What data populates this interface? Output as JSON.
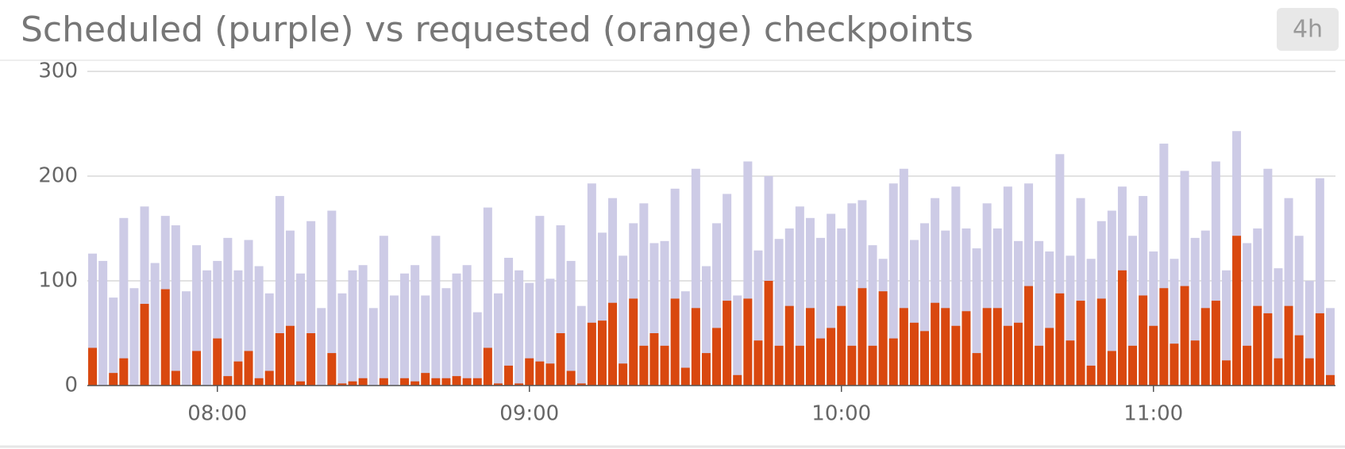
{
  "time_range_button": "4h",
  "chart_data": {
    "type": "bar",
    "title": "Scheduled (purple) vs requested (orange) checkpoints",
    "categories": [
      null,
      null,
      null,
      null,
      null,
      null,
      null,
      null,
      null,
      null,
      null,
      null,
      "08:00",
      null,
      null,
      null,
      null,
      null,
      null,
      null,
      null,
      null,
      null,
      null,
      null,
      null,
      null,
      null,
      null,
      null,
      null,
      null,
      null,
      null,
      null,
      null,
      null,
      null,
      null,
      null,
      null,
      null,
      "09:00",
      null,
      null,
      null,
      null,
      null,
      null,
      null,
      null,
      null,
      null,
      null,
      null,
      null,
      null,
      null,
      null,
      null,
      null,
      null,
      null,
      null,
      null,
      null,
      null,
      null,
      null,
      null,
      null,
      null,
      "10:00",
      null,
      null,
      null,
      null,
      null,
      null,
      null,
      null,
      null,
      null,
      null,
      null,
      null,
      null,
      null,
      null,
      null,
      null,
      null,
      null,
      null,
      null,
      null,
      null,
      null,
      null,
      null,
      null,
      null,
      "11:00",
      null,
      null,
      null,
      null,
      null,
      null,
      null,
      null,
      null,
      null,
      null,
      null,
      null,
      null,
      null,
      null,
      null
    ],
    "series": [
      {
        "color": "#cdcbe6",
        "values": [
          126,
          119,
          84,
          160,
          93,
          171,
          117,
          162,
          153,
          90,
          134,
          110,
          119,
          141,
          110,
          139,
          114,
          88,
          181,
          148,
          107,
          157,
          74,
          167,
          88,
          110,
          115,
          74,
          143,
          86,
          107,
          115,
          86,
          143,
          93,
          107,
          115,
          70,
          170,
          88,
          122,
          110,
          98,
          162,
          102,
          153,
          119,
          76,
          193,
          146,
          179,
          124,
          155,
          174,
          136,
          138,
          188,
          90,
          207,
          114,
          155,
          183,
          86,
          214,
          129,
          200,
          140,
          150,
          171,
          160,
          141,
          164,
          150,
          174,
          177,
          134,
          121,
          193,
          207,
          139,
          155,
          179,
          148,
          190,
          150,
          131,
          174,
          150,
          190,
          138,
          193,
          138,
          128,
          221,
          124,
          179,
          121,
          157,
          167,
          190,
          143,
          181,
          128,
          231,
          121,
          205,
          141,
          148,
          214,
          110,
          243,
          136,
          150,
          207,
          112,
          179,
          143,
          100,
          198,
          74
        ]
      },
      {
        "color": "#d9480f",
        "values": [
          36,
          0,
          12,
          26,
          0,
          78,
          0,
          92,
          14,
          0,
          33,
          0,
          45,
          9,
          23,
          33,
          7,
          14,
          50,
          57,
          4,
          50,
          0,
          31,
          2,
          4,
          7,
          0,
          7,
          0,
          7,
          4,
          12,
          7,
          7,
          9,
          7,
          7,
          36,
          2,
          19,
          2,
          26,
          23,
          21,
          50,
          14,
          2,
          60,
          62,
          79,
          21,
          83,
          38,
          50,
          38,
          83,
          17,
          74,
          31,
          55,
          81,
          10,
          83,
          43,
          100,
          38,
          76,
          38,
          74,
          45,
          55,
          76,
          38,
          93,
          38,
          90,
          45,
          74,
          60,
          52,
          79,
          74,
          57,
          71,
          31,
          74,
          74,
          57,
          60,
          95,
          38,
          55,
          88,
          43,
          81,
          19,
          83,
          33,
          110,
          38,
          86,
          57,
          93,
          40,
          95,
          43,
          74,
          81,
          24,
          143,
          38,
          76,
          69,
          26,
          76,
          48,
          26,
          69,
          10
        ]
      }
    ],
    "ylim": [
      0,
      300
    ],
    "yticks": [
      0,
      100,
      200,
      300
    ],
    "grid": true
  }
}
